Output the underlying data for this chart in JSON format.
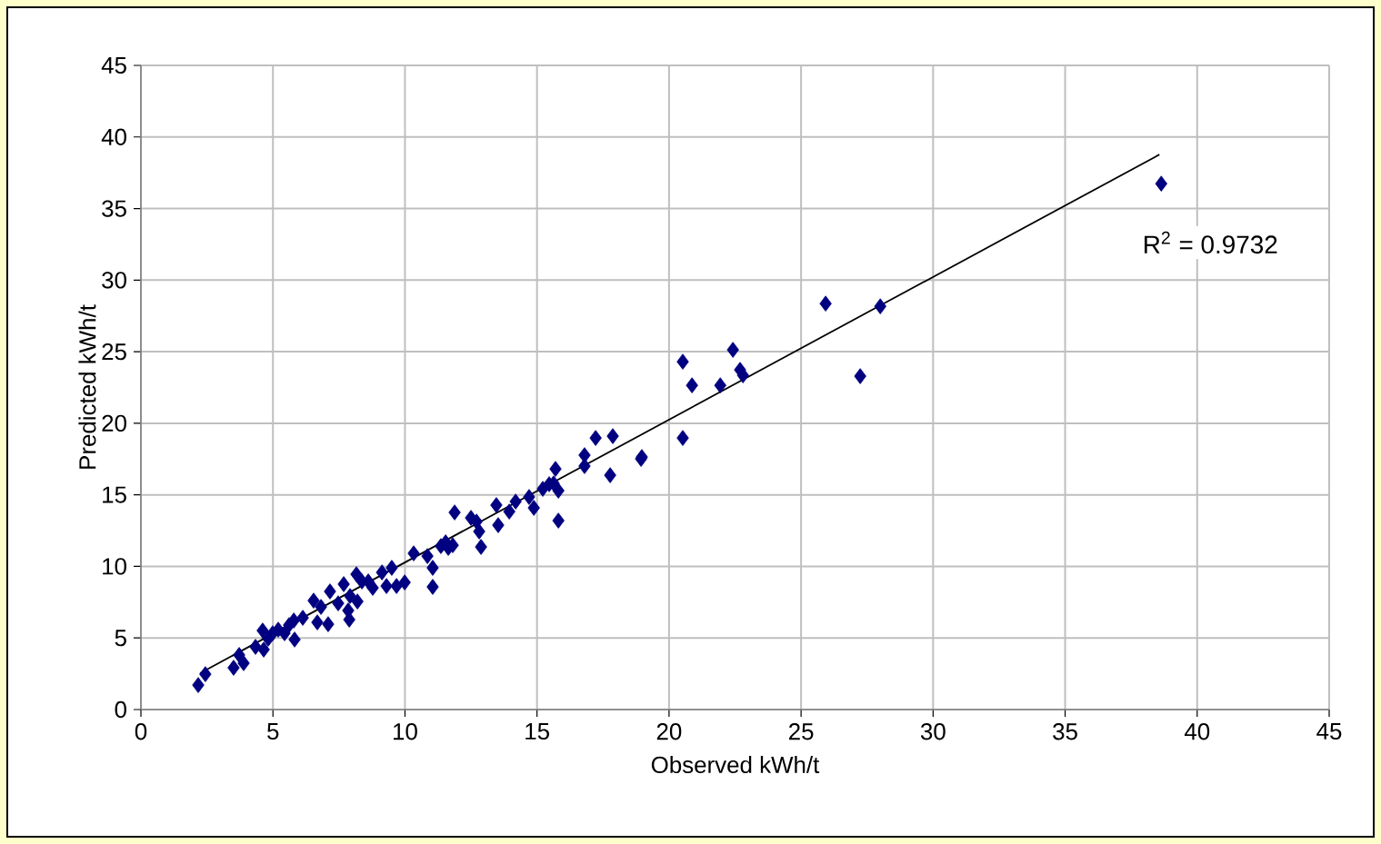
{
  "chart_data": {
    "type": "scatter",
    "xlabel": "Observed kWh/t",
    "ylabel": "Predicted kWh/t",
    "xlim": [
      0,
      45
    ],
    "ylim": [
      0,
      45
    ],
    "xticks": [
      0,
      5,
      10,
      15,
      20,
      25,
      30,
      35,
      40,
      45
    ],
    "yticks": [
      0,
      5,
      10,
      15,
      20,
      25,
      30,
      35,
      40,
      45
    ],
    "grid": true,
    "marker": "diamond",
    "annotations": [
      "R$^{2}$ = 0.9732"
    ],
    "series": [
      {
        "color": "#000080",
        "x": [
          2.17,
          2.44,
          3.51,
          3.72,
          3.89,
          4.34,
          4.65,
          4.61,
          4.82,
          4.99,
          5.2,
          5.44,
          5.61,
          5.82,
          5.79,
          6.13,
          6.54,
          6.68,
          6.82,
          7.09,
          7.16,
          7.47,
          7.68,
          7.85,
          7.89,
          7.92,
          8.16,
          8.2,
          8.37,
          8.61,
          8.78,
          9.13,
          9.3,
          9.5,
          9.68,
          9.99,
          10.33,
          10.85,
          11.05,
          11.05,
          11.36,
          11.54,
          11.64,
          11.81,
          11.88,
          12.5,
          12.71,
          12.81,
          12.88,
          13.46,
          13.53,
          13.95,
          14.19,
          14.7,
          14.88,
          15.22,
          15.46,
          15.63,
          15.7,
          15.81,
          15.81,
          16.8,
          16.8,
          17.22,
          17.77,
          17.87,
          18.94,
          18.97,
          20.52,
          20.52,
          20.87,
          21.94,
          22.42,
          22.69,
          22.8,
          25.93,
          27.24,
          28.0,
          38.64
        ],
        "values": [
          1.71,
          2.47,
          2.92,
          3.81,
          3.24,
          4.38,
          4.19,
          5.52,
          4.95,
          5.33,
          5.58,
          5.33,
          5.9,
          4.89,
          6.22,
          6.41,
          7.61,
          6.09,
          7.17,
          5.96,
          8.25,
          7.42,
          8.76,
          6.92,
          6.28,
          7.93,
          9.45,
          7.55,
          8.95,
          8.95,
          8.5,
          9.58,
          8.63,
          9.9,
          8.63,
          8.88,
          10.91,
          10.72,
          9.9,
          8.57,
          11.42,
          11.68,
          11.29,
          11.48,
          13.77,
          13.39,
          13.13,
          12.44,
          11.36,
          14.28,
          12.88,
          13.83,
          14.53,
          14.85,
          14.09,
          15.42,
          15.74,
          15.8,
          16.81,
          15.29,
          13.2,
          17.77,
          17.01,
          18.97,
          16.37,
          19.1,
          17.51,
          17.64,
          24.3,
          18.97,
          22.65,
          22.65,
          25.13,
          23.73,
          23.35,
          28.36,
          23.29,
          28.17,
          36.74
        ]
      },
      {
        "type": "line",
        "color": "#000000",
        "line_style": "solid",
        "marker": "none",
        "x": [
          2.24,
          38.57
        ],
        "values": [
          2.54,
          38.77
        ]
      }
    ]
  }
}
